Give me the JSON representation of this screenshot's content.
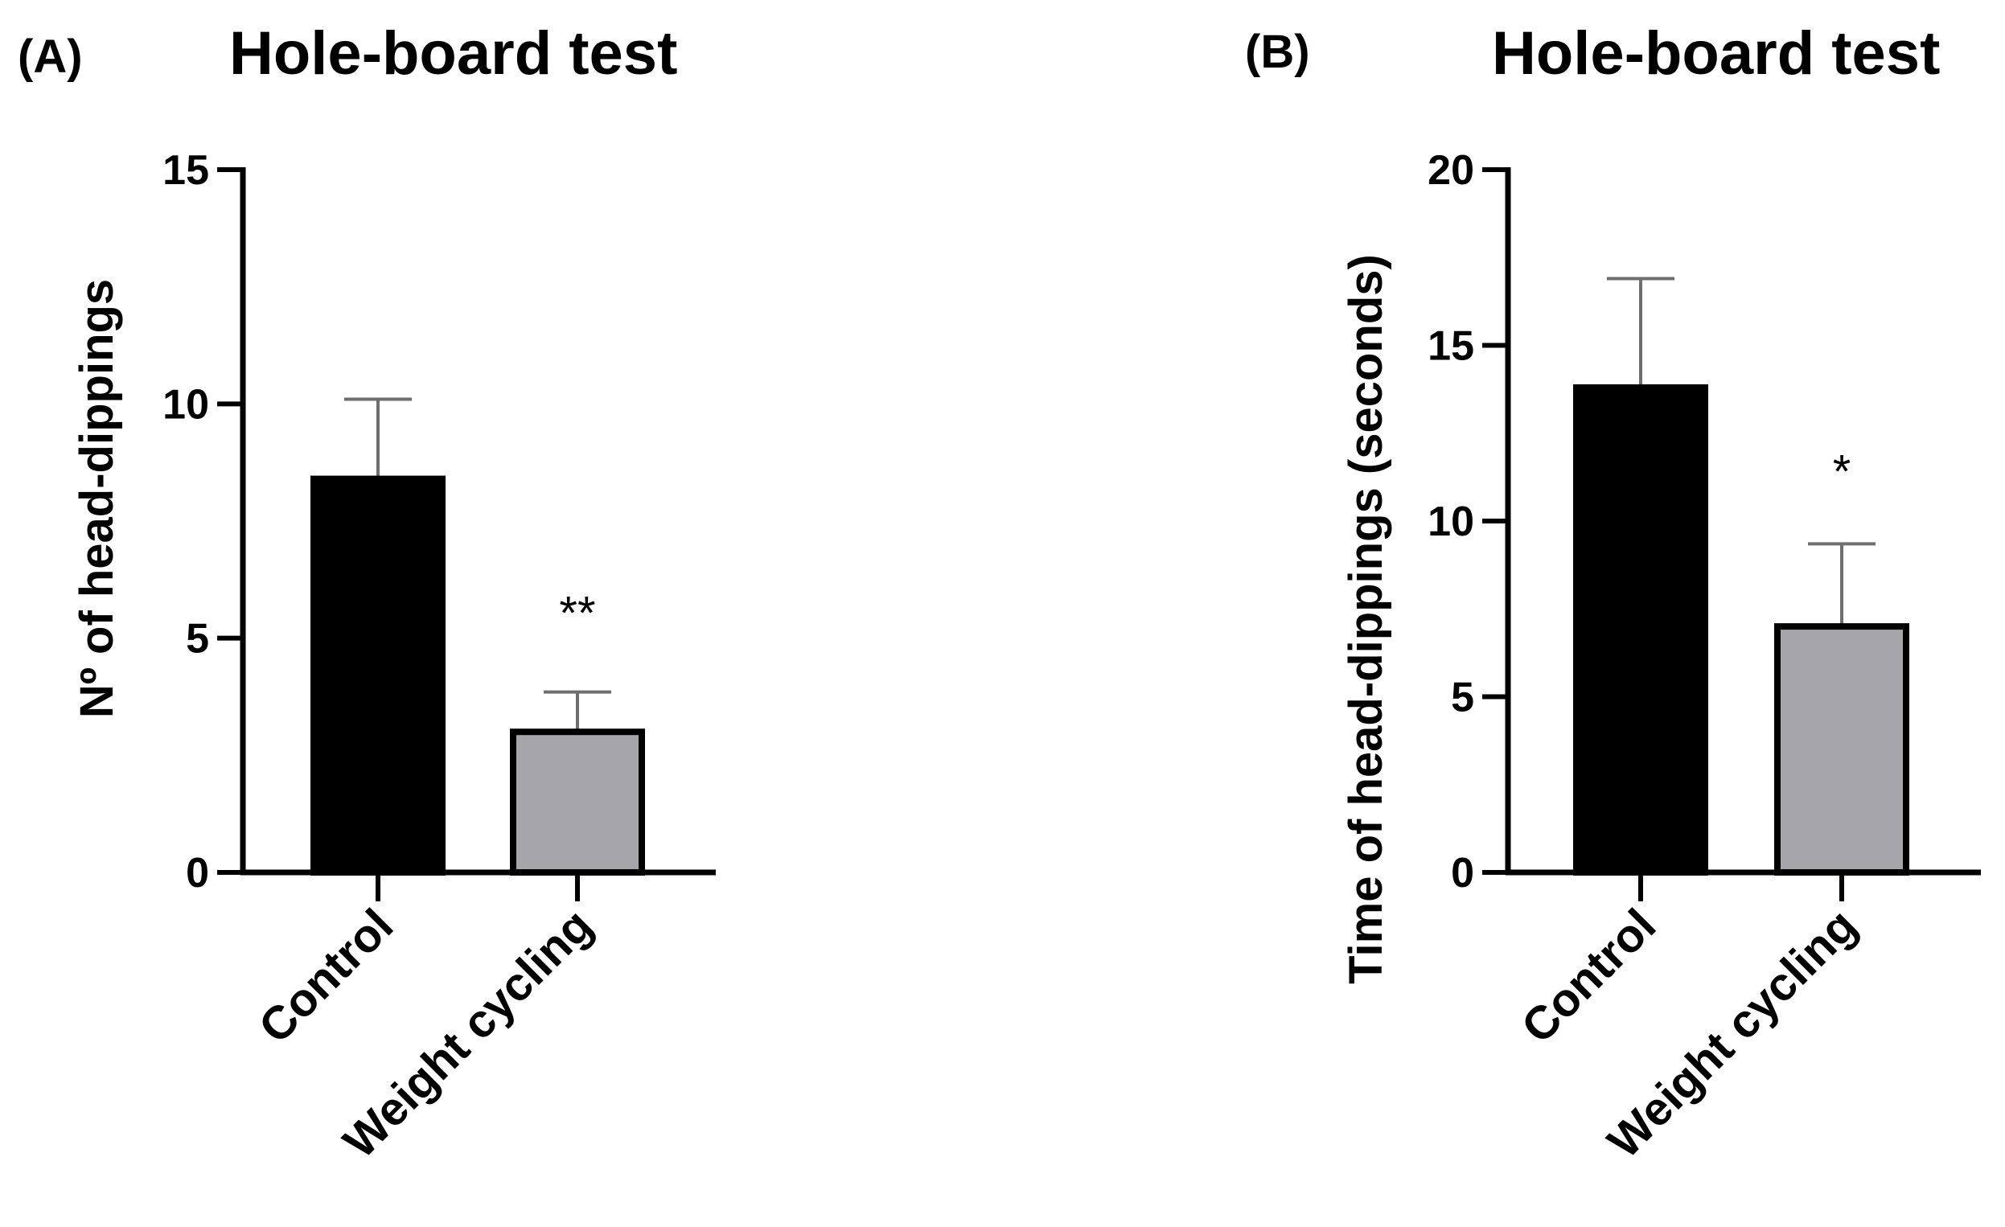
{
  "chart_data": [
    {
      "type": "bar",
      "panel_label": "(A)",
      "title": "Hole-board test",
      "ylabel": "Nº of head-dippings",
      "xlabel": "",
      "ylim": [
        0,
        15
      ],
      "yticks": [
        0,
        5,
        10,
        15
      ],
      "categories": [
        "Control",
        "Weight cycling"
      ],
      "values": [
        8.4,
        3.0
      ],
      "errors": [
        1.7,
        0.85
      ],
      "colors": [
        "#000000",
        "#a6a5aa"
      ],
      "significance": [
        "",
        "**"
      ]
    },
    {
      "type": "bar",
      "panel_label": "(B)",
      "title": "Hole-board test",
      "ylabel": "Time of head-dippings (seconds)",
      "xlabel": "",
      "ylim": [
        0,
        20
      ],
      "yticks": [
        0,
        5,
        10,
        15,
        20
      ],
      "categories": [
        "Control",
        "Weight cycling"
      ],
      "values": [
        13.8,
        7.0
      ],
      "errors": [
        3.1,
        2.35
      ],
      "colors": [
        "#000000",
        "#a6a5aa"
      ],
      "significance": [
        "",
        "*"
      ]
    }
  ]
}
